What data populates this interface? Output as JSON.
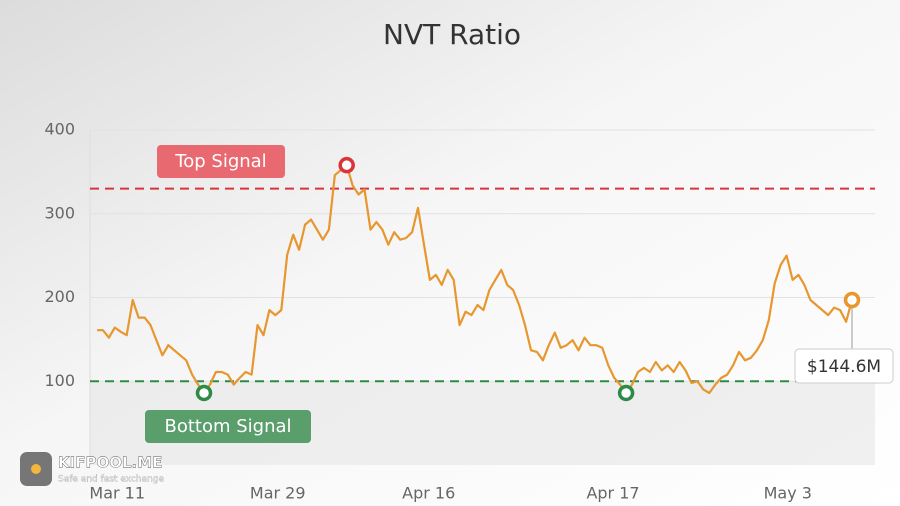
{
  "chart_data": {
    "type": "line",
    "title": "NVT Ratio",
    "color": "#e8962e",
    "values": [
      161,
      161,
      152,
      164,
      159,
      155,
      197,
      176,
      176,
      167,
      149,
      131,
      143,
      137,
      131,
      125,
      108,
      96,
      86,
      96,
      111,
      111,
      108,
      96,
      104,
      111,
      108,
      167,
      155,
      185,
      179,
      185,
      251,
      275,
      257,
      287,
      293,
      281,
      269,
      281,
      346,
      352,
      358,
      334,
      323,
      329,
      281,
      290,
      281,
      263,
      278,
      269,
      271,
      278,
      307,
      263,
      221,
      227,
      215,
      233,
      221,
      167,
      183,
      179,
      191,
      185,
      209,
      221,
      233,
      215,
      209,
      191,
      167,
      137,
      135,
      125,
      143,
      158,
      140,
      143,
      149,
      137,
      152,
      143,
      143,
      140,
      119,
      104,
      96,
      86,
      96,
      111,
      116,
      111,
      123,
      113,
      119,
      111,
      123,
      113,
      98,
      100,
      90,
      86,
      96,
      104,
      108,
      119,
      135,
      125,
      128,
      137,
      149,
      173,
      217,
      239,
      250,
      221,
      227,
      215,
      197,
      191,
      185,
      179,
      188,
      185,
      171,
      197
    ],
    "xlim": [
      0,
      127
    ],
    "xticks": [
      {
        "value": 3.4,
        "label": "Mar 11"
      },
      {
        "value": 30.4,
        "label": "Mar 29"
      },
      {
        "value": 55.8,
        "label": "Apr 16"
      },
      {
        "value": 86.8,
        "label": "Apr 17"
      },
      {
        "value": 116.2,
        "label": "May 3"
      }
    ],
    "ylim": [
      0,
      400
    ],
    "yticks": [
      100,
      200,
      300,
      400
    ],
    "grid": true,
    "thresholds": [
      {
        "label": "Top Signal",
        "value": 330,
        "color": "#d9343a",
        "box_color": "#e86a70"
      },
      {
        "label": "Bottom Signal",
        "value": 100,
        "color": "#2e8b47",
        "box_color": "#5a9e6c"
      }
    ],
    "signal_points": {
      "top": [
        42
      ],
      "bottom": [
        18,
        89
      ],
      "current": [
        127
      ]
    },
    "current_label": "$144.6M",
    "brand": {
      "name": "KIFPOOL.ME",
      "tagline": "Safe and fast exchange"
    }
  }
}
